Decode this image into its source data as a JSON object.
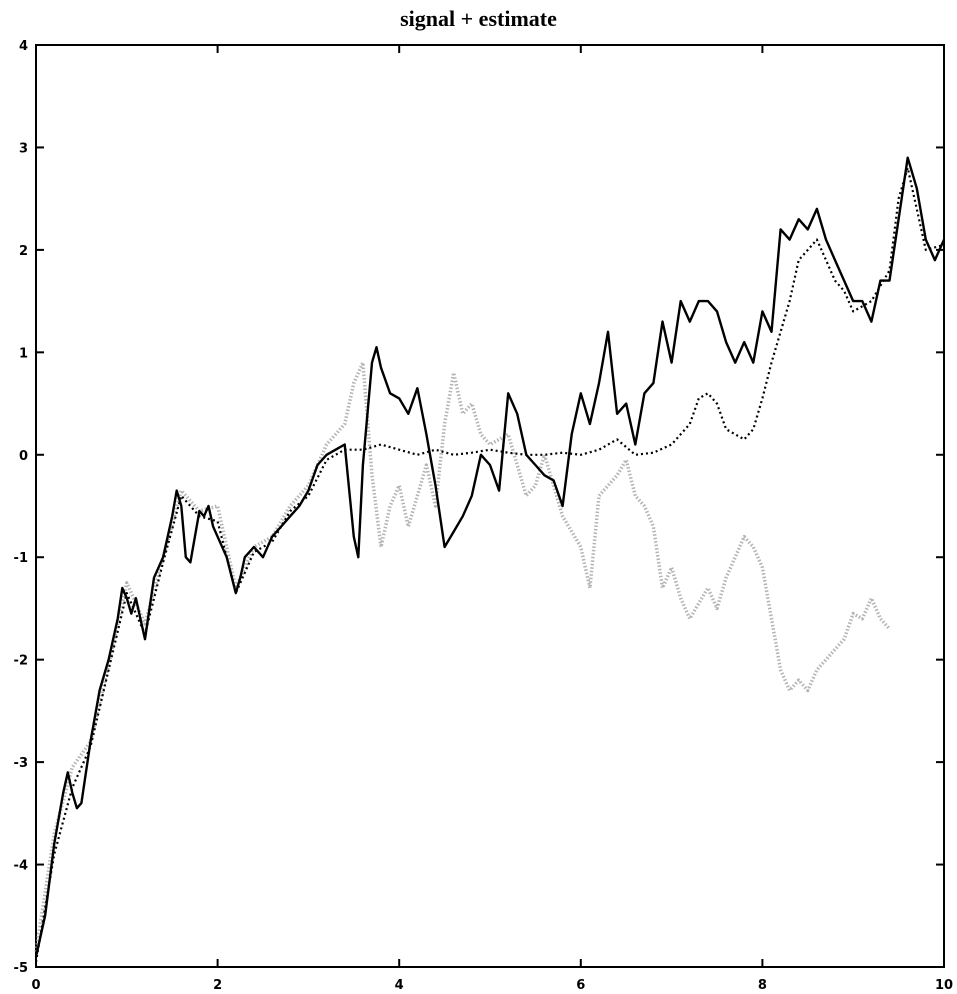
{
  "chart_data": {
    "type": "line",
    "title": "signal + estimate",
    "xlabel": "",
    "ylabel": "",
    "xlim": [
      0,
      10
    ],
    "ylim": [
      -5,
      4
    ],
    "xticks": [
      0,
      2,
      4,
      6,
      8,
      10
    ],
    "yticks": [
      -5,
      -4,
      -3,
      -2,
      -1,
      0,
      1,
      2,
      3,
      4
    ],
    "grid": false,
    "legend": "none",
    "series": [
      {
        "style": "solid",
        "color": "#000000",
        "x": [
          0,
          0.1,
          0.2,
          0.3,
          0.35,
          0.4,
          0.45,
          0.5,
          0.6,
          0.7,
          0.8,
          0.9,
          0.95,
          1.0,
          1.05,
          1.1,
          1.15,
          1.2,
          1.25,
          1.3,
          1.4,
          1.5,
          1.55,
          1.6,
          1.65,
          1.7,
          1.75,
          1.8,
          1.85,
          1.9,
          1.95,
          2.0,
          2.1,
          2.2,
          2.25,
          2.3,
          2.4,
          2.5,
          2.6,
          2.7,
          2.8,
          2.9,
          3.0,
          3.1,
          3.2,
          3.3,
          3.4,
          3.5,
          3.55,
          3.6,
          3.7,
          3.75,
          3.8,
          3.9,
          4.0,
          4.1,
          4.2,
          4.3,
          4.4,
          4.5,
          4.6,
          4.7,
          4.8,
          4.9,
          5.0,
          5.1,
          5.2,
          5.3,
          5.4,
          5.5,
          5.6,
          5.7,
          5.8,
          5.9,
          6.0,
          6.1,
          6.2,
          6.3,
          6.4,
          6.5,
          6.6,
          6.7,
          6.8,
          6.9,
          7.0,
          7.1,
          7.2,
          7.3,
          7.4,
          7.5,
          7.6,
          7.7,
          7.8,
          7.9,
          8.0,
          8.1,
          8.2,
          8.3,
          8.4,
          8.5,
          8.6,
          8.7,
          8.8,
          8.9,
          9.0,
          9.1,
          9.2,
          9.3,
          9.4,
          9.5,
          9.6,
          9.7,
          9.8,
          9.9,
          10.0
        ],
        "y": [
          -4.9,
          -4.5,
          -3.8,
          -3.3,
          -3.1,
          -3.3,
          -3.45,
          -3.4,
          -2.8,
          -2.3,
          -2.0,
          -1.6,
          -1.3,
          -1.4,
          -1.55,
          -1.4,
          -1.6,
          -1.8,
          -1.5,
          -1.2,
          -1.0,
          -0.6,
          -0.35,
          -0.5,
          -1.0,
          -1.05,
          -0.8,
          -0.55,
          -0.6,
          -0.5,
          -0.7,
          -0.8,
          -1.0,
          -1.35,
          -1.2,
          -1.0,
          -0.9,
          -1.0,
          -0.8,
          -0.7,
          -0.6,
          -0.5,
          -0.35,
          -0.1,
          0.0,
          0.05,
          0.1,
          -0.8,
          -1.0,
          -0.1,
          0.9,
          1.05,
          0.85,
          0.6,
          0.55,
          0.4,
          0.65,
          0.2,
          -0.3,
          -0.9,
          -0.75,
          -0.6,
          -0.4,
          0.0,
          -0.1,
          -0.35,
          0.6,
          0.4,
          0.0,
          -0.1,
          -0.2,
          -0.25,
          -0.5,
          0.2,
          0.6,
          0.3,
          0.7,
          1.2,
          0.4,
          0.5,
          0.1,
          0.6,
          0.7,
          1.3,
          0.9,
          1.5,
          1.3,
          1.5,
          1.5,
          1.4,
          1.1,
          0.9,
          1.1,
          0.9,
          1.4,
          1.2,
          2.2,
          2.1,
          2.3,
          2.2,
          2.4,
          2.1,
          1.9,
          1.7,
          1.5,
          1.5,
          1.3,
          1.7,
          1.7,
          2.3,
          2.9,
          2.6,
          2.1,
          1.9,
          2.1
        ]
      },
      {
        "style": "dotted",
        "color": "#000000",
        "x": [
          0,
          0.2,
          0.4,
          0.6,
          0.8,
          1.0,
          1.2,
          1.4,
          1.6,
          1.8,
          2.0,
          2.2,
          2.4,
          2.6,
          2.8,
          3.0,
          3.2,
          3.4,
          3.6,
          3.8,
          4.0,
          4.2,
          4.4,
          4.6,
          4.8,
          5.0,
          5.2,
          5.4,
          5.6,
          5.8,
          6.0,
          6.2,
          6.4,
          6.6,
          6.8,
          7.0,
          7.2,
          7.3,
          7.4,
          7.5,
          7.6,
          7.7,
          7.8,
          7.9,
          8.0,
          8.1,
          8.2,
          8.3,
          8.4,
          8.5,
          8.6,
          8.7,
          8.8,
          8.9,
          9.0,
          9.2,
          9.4,
          9.5,
          9.6,
          9.8,
          10.0
        ],
        "y": [
          -4.95,
          -3.9,
          -3.25,
          -2.85,
          -2.1,
          -1.35,
          -1.75,
          -1.05,
          -0.4,
          -0.6,
          -0.65,
          -1.35,
          -0.95,
          -0.85,
          -0.55,
          -0.4,
          -0.05,
          0.05,
          0.05,
          0.1,
          0.05,
          0.0,
          0.05,
          0.0,
          0.02,
          0.05,
          0.02,
          0.0,
          0.0,
          0.02,
          0.0,
          0.05,
          0.15,
          0.0,
          0.02,
          0.1,
          0.3,
          0.55,
          0.6,
          0.5,
          0.25,
          0.2,
          0.15,
          0.25,
          0.55,
          0.9,
          1.2,
          1.5,
          1.9,
          2.0,
          2.1,
          1.9,
          1.7,
          1.6,
          1.4,
          1.5,
          1.8,
          2.5,
          2.8,
          2.0,
          2.05
        ]
      },
      {
        "style": "dotted-light",
        "color": "#9a9a9a",
        "x": [
          0,
          0.2,
          0.4,
          0.6,
          0.8,
          1.0,
          1.2,
          1.4,
          1.6,
          1.8,
          2.0,
          2.2,
          2.4,
          2.6,
          2.8,
          3.0,
          3.2,
          3.4,
          3.5,
          3.6,
          3.7,
          3.8,
          3.9,
          4.0,
          4.1,
          4.2,
          4.3,
          4.4,
          4.5,
          4.6,
          4.7,
          4.8,
          4.9,
          5.0,
          5.2,
          5.4,
          5.5,
          5.6,
          5.8,
          6.0,
          6.1,
          6.2,
          6.4,
          6.5,
          6.6,
          6.7,
          6.8,
          6.9,
          7.0,
          7.1,
          7.2,
          7.3,
          7.4,
          7.5,
          7.6,
          7.7,
          7.8,
          7.9,
          8.0,
          8.1,
          8.2,
          8.3,
          8.4,
          8.5,
          8.6,
          8.7,
          8.8,
          8.9,
          9.0,
          9.1,
          9.2,
          9.3,
          9.4
        ],
        "y": [
          -4.85,
          -3.7,
          -3.05,
          -2.8,
          -2.05,
          -1.25,
          -1.65,
          -1.0,
          -0.35,
          -0.55,
          -0.5,
          -1.3,
          -0.9,
          -0.8,
          -0.5,
          -0.3,
          0.1,
          0.3,
          0.7,
          0.9,
          -0.2,
          -0.9,
          -0.5,
          -0.3,
          -0.7,
          -0.4,
          -0.1,
          -0.5,
          0.3,
          0.8,
          0.4,
          0.5,
          0.2,
          0.1,
          0.2,
          -0.4,
          -0.3,
          0.0,
          -0.6,
          -0.9,
          -1.3,
          -0.4,
          -0.2,
          -0.05,
          -0.4,
          -0.5,
          -0.7,
          -1.3,
          -1.1,
          -1.4,
          -1.6,
          -1.45,
          -1.3,
          -1.5,
          -1.2,
          -1.0,
          -0.8,
          -0.9,
          -1.1,
          -1.6,
          -2.1,
          -2.3,
          -2.2,
          -2.3,
          -2.1,
          -2.0,
          -1.9,
          -1.8,
          -1.55,
          -1.6,
          -1.4,
          -1.6,
          -1.7
        ]
      }
    ]
  }
}
